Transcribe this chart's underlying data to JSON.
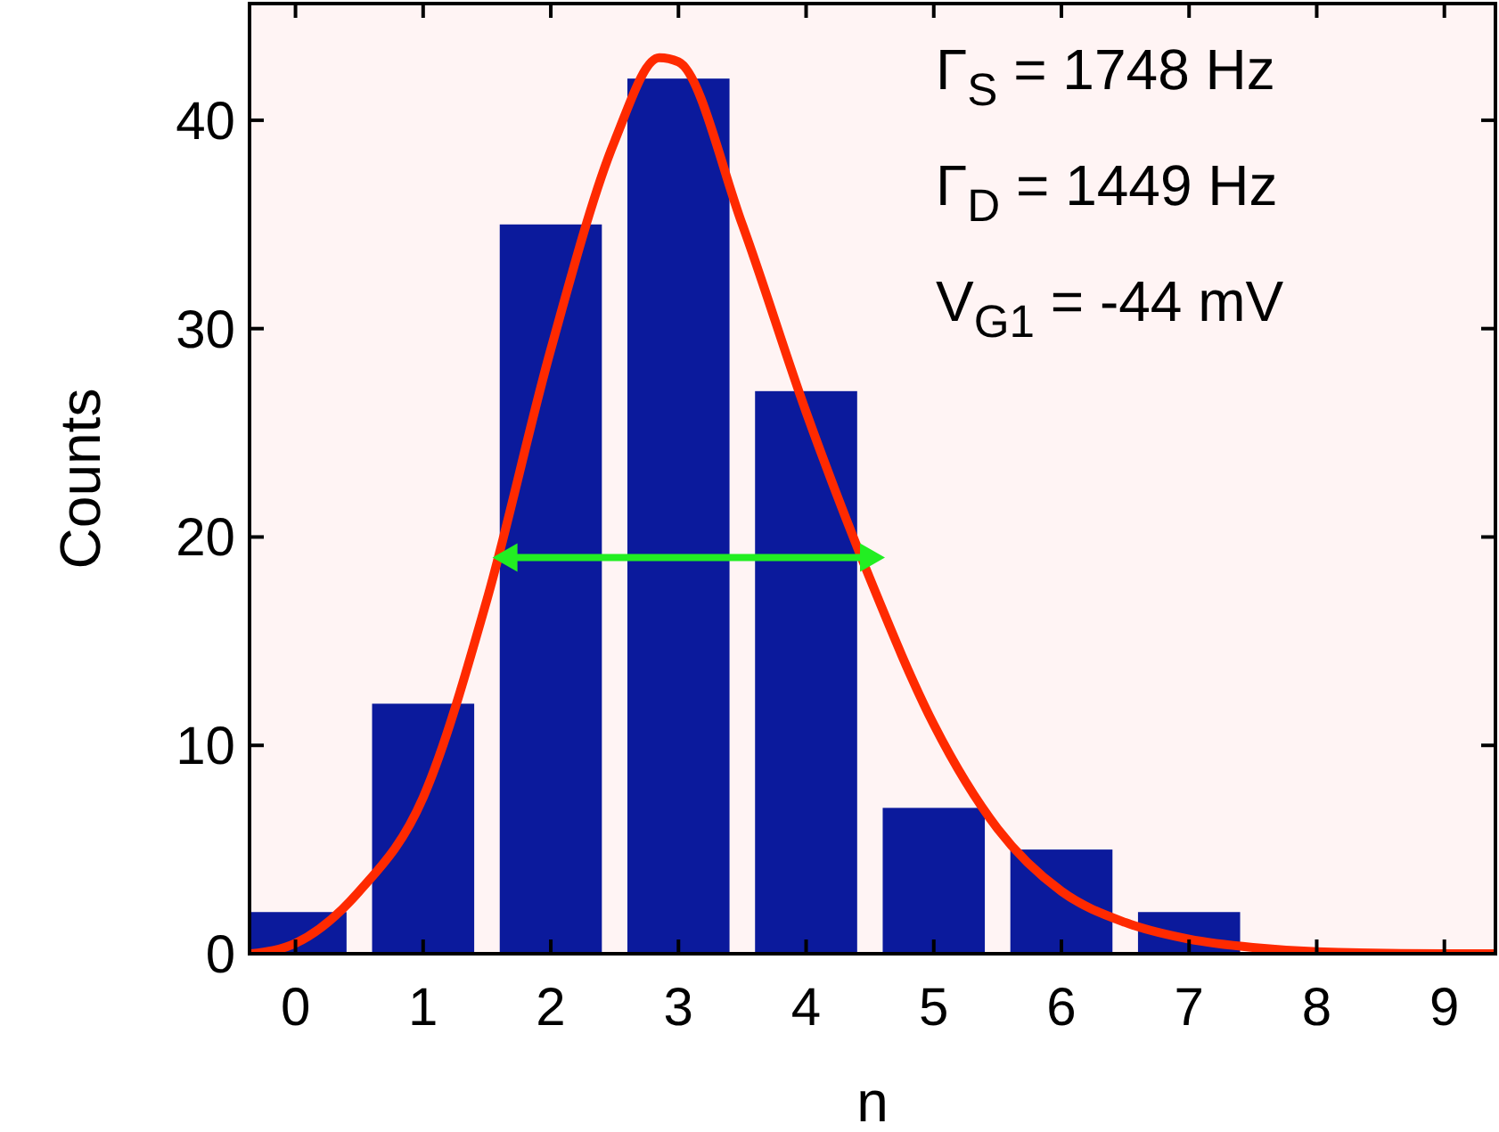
{
  "chart_data": {
    "type": "bar",
    "xlabel": "n",
    "ylabel": "Counts",
    "x": [
      0,
      1,
      2,
      3,
      4,
      5,
      6,
      7,
      8,
      9
    ],
    "series": [
      {
        "color": "#0b1a9c",
        "values": [
          2,
          12,
          35,
          42,
          27,
          7,
          5,
          2,
          0,
          0
        ]
      },
      {
        "type": "line",
        "color": "#ff2a00",
        "x": [
          -0.35,
          0,
          0.5,
          1,
          1.5,
          2,
          2.5,
          2.85,
          3,
          3.5,
          4,
          4.5,
          5,
          5.5,
          6,
          6.5,
          7,
          7.5,
          8,
          9,
          9.4
        ],
        "values": [
          0,
          0.5,
          3,
          7.5,
          17,
          29,
          39,
          43,
          42.8,
          35,
          26,
          18,
          11,
          6,
          3,
          1.5,
          0.7,
          0.3,
          0.1,
          0,
          0
        ]
      }
    ],
    "xlim": [
      -0.36,
      9.4
    ],
    "xticks": [
      0,
      1,
      2,
      3,
      4,
      5,
      6,
      7,
      8,
      9
    ],
    "ylim": [
      0,
      45.6
    ],
    "yticks": [
      0,
      10,
      20,
      30,
      40
    ],
    "grid": false,
    "marker": "none",
    "line_style": "solid",
    "annotations": [
      "Γ$_{S}$ = 1748 Hz",
      "Γ$_{D}$ = 1449 Hz",
      "V$_{G1}$ = -44 mV"
    ]
  }
}
